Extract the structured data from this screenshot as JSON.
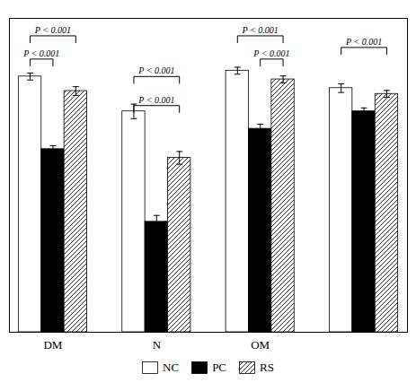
{
  "chart_data": {
    "type": "bar",
    "categories": [
      "DM",
      "N",
      "OM",
      null
    ],
    "series": [
      {
        "name": "NC",
        "color": "white",
        "values": [
          0.88,
          0.76,
          0.9,
          0.84
        ],
        "errors": [
          0.012,
          0.025,
          0.012,
          0.015
        ]
      },
      {
        "name": "PC",
        "color": "black",
        "values": [
          0.63,
          0.38,
          0.7,
          0.76
        ],
        "errors": [
          0.012,
          0.022,
          0.016,
          0.012
        ]
      },
      {
        "name": "RS",
        "color": "white",
        "values": [
          0.83,
          0.6,
          0.87,
          0.82
        ],
        "errors": [
          0.015,
          0.022,
          0.012,
          0.012
        ]
      }
    ],
    "ylim": [
      0,
      1.08
    ],
    "yticks": [],
    "grid": false,
    "tick_labels": "x",
    "legend": "bottom",
    "annotations": [
      {
        "text": "P < 0.001",
        "group": 0,
        "from": "NC",
        "to": "RS",
        "y": 1.02
      },
      {
        "text": "P < 0.001",
        "group": 0,
        "from": "NC",
        "to": "PC",
        "y": 0.94
      },
      {
        "text": "P < 0.001",
        "group": 1,
        "from": "NC",
        "to": "RS",
        "y": 0.88
      },
      {
        "text": "P < 0.001",
        "group": 1,
        "from": "NC",
        "to": "RS",
        "y": 0.78
      },
      {
        "text": "P < 0.001",
        "group": 2,
        "from": "NC",
        "to": "RS",
        "y": 1.02
      },
      {
        "text": "P < 0.001",
        "group": 2,
        "from": "PC",
        "to": "RS",
        "y": 0.94
      },
      {
        "text": "P < 0.001",
        "group": 3,
        "from": "NC",
        "to": "RS",
        "y": 0.98
      }
    ]
  }
}
